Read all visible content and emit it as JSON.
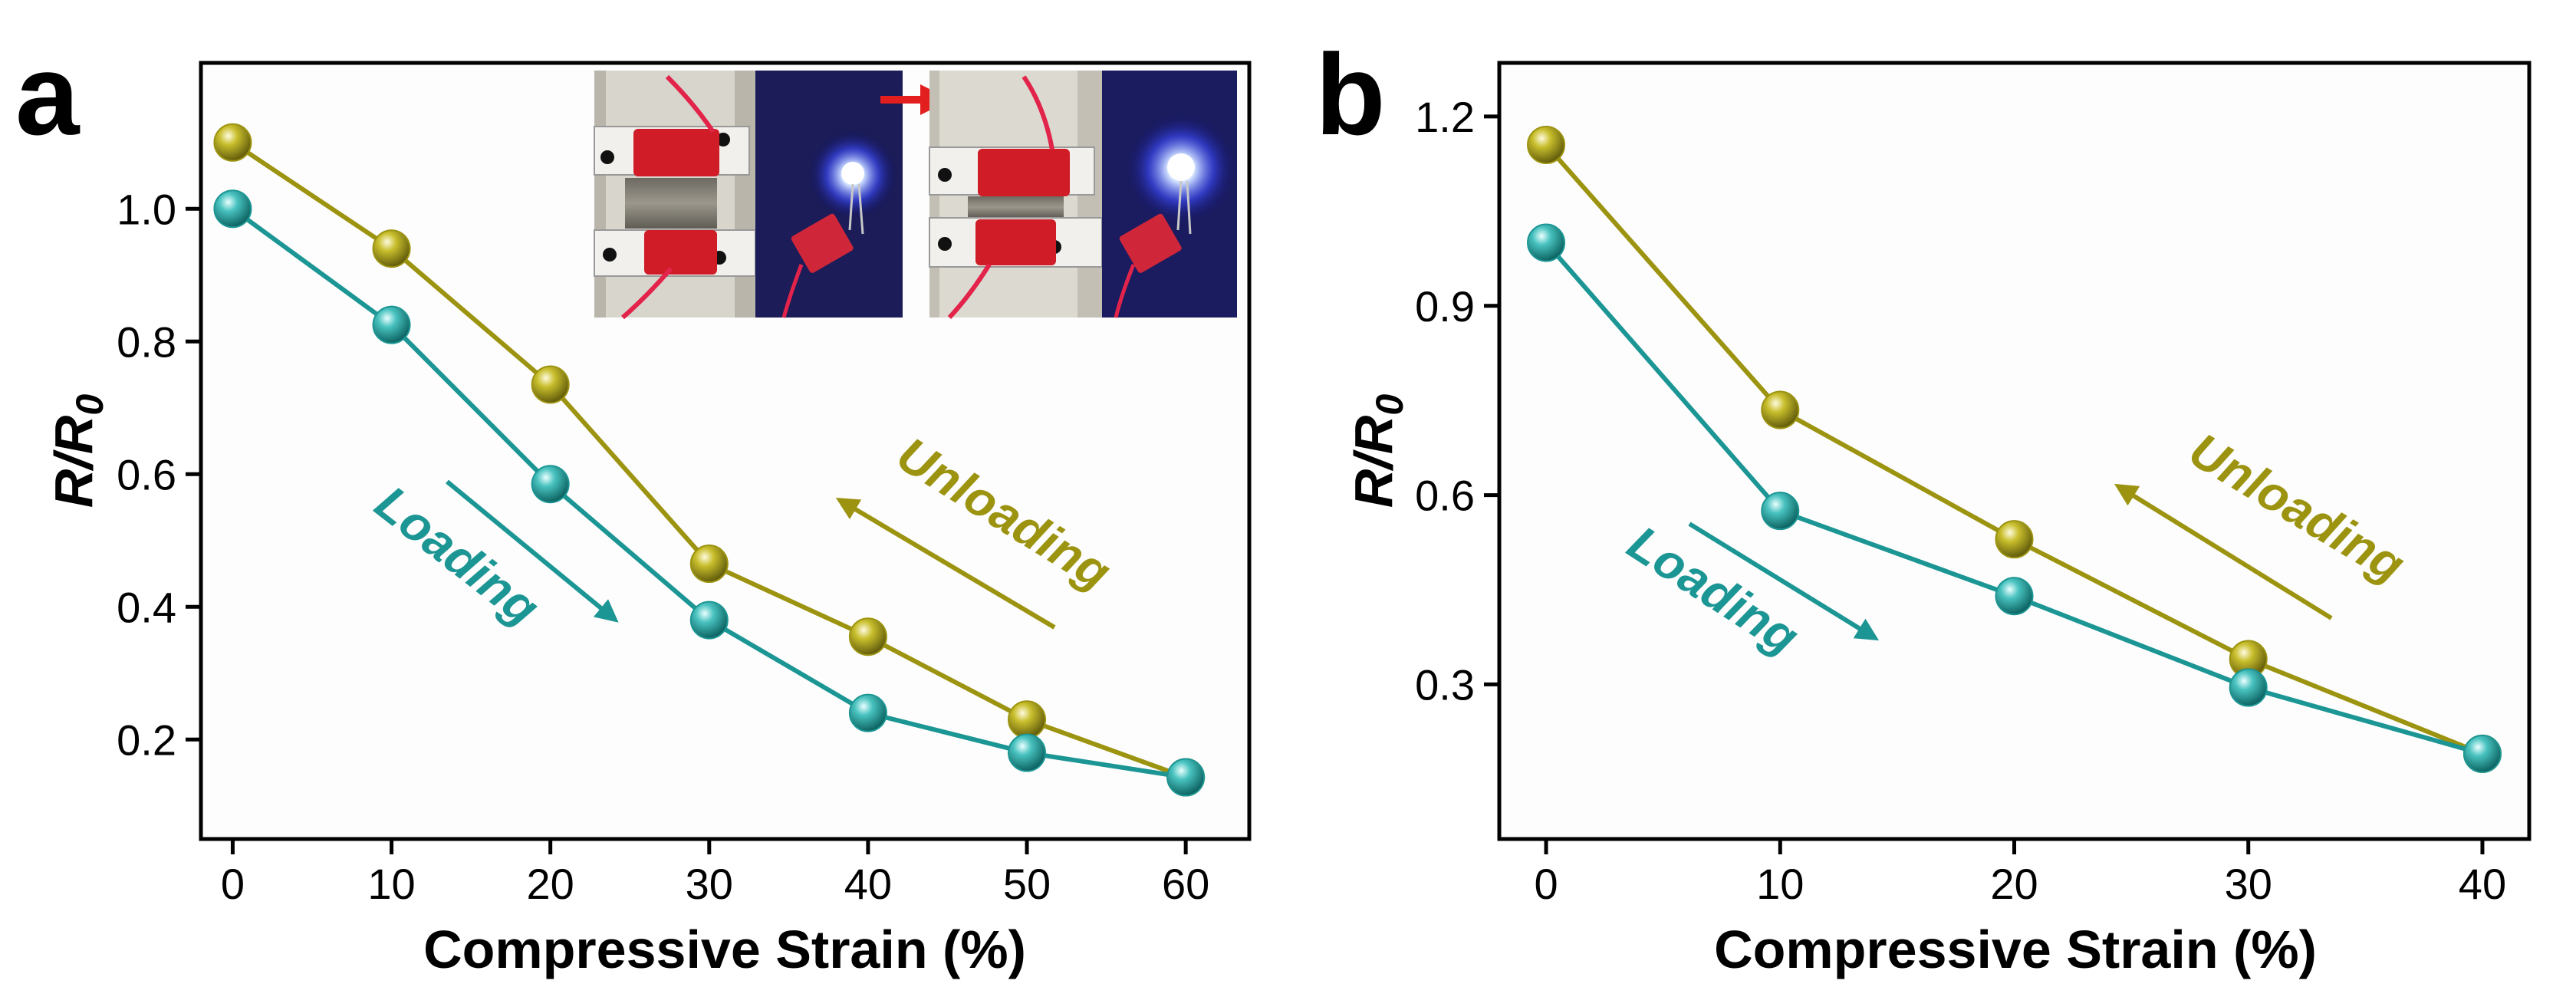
{
  "colors": {
    "loading": "#1c9694",
    "unloading": "#9c9410",
    "arrow_red": "#e31e1e",
    "plot_bg": "#fdfdfd"
  },
  "chart_data": [
    {
      "panel": "a",
      "type": "line",
      "xlabel": "Compressive Strain (%)",
      "ylabel": "R/R0",
      "ylabel_main": "R/R",
      "ylabel_sub": "0",
      "xlim": [
        -2,
        64
      ],
      "ylim": [
        0.05,
        1.22
      ],
      "xticks": [
        0,
        10,
        20,
        30,
        40,
        50,
        60
      ],
      "yticks": [
        0.2,
        0.4,
        0.6,
        0.8,
        1.0
      ],
      "ytick_labels": [
        "0.2",
        "0.4",
        "0.6",
        "0.8",
        "1.0"
      ],
      "series": [
        {
          "name": "Unloading",
          "color": "#9c9410",
          "x": [
            0,
            10,
            20,
            30,
            40,
            50,
            60
          ],
          "y": [
            1.1,
            0.94,
            0.735,
            0.465,
            0.355,
            0.23,
            0.143
          ]
        },
        {
          "name": "Loading",
          "color": "#1c9694",
          "x": [
            0,
            10,
            20,
            30,
            40,
            50,
            60
          ],
          "y": [
            1.0,
            0.825,
            0.585,
            0.38,
            0.24,
            0.18,
            0.143
          ]
        }
      ],
      "annotations": [
        {
          "text": "Loading",
          "color": "#1c9694",
          "arrow": "down-right"
        },
        {
          "text": "Unloading",
          "color": "#9c9410",
          "arrow": "up-left"
        }
      ],
      "inset": "photo: sponge sensor in clamps with lit blue LED, uncompressed → compressed"
    },
    {
      "panel": "b",
      "type": "line",
      "xlabel": "Compressive Strain (%)",
      "ylabel": "R/R0",
      "ylabel_main": "R/R",
      "ylabel_sub": "0",
      "xlim": [
        -2,
        42
      ],
      "ylim": [
        0.055,
        1.285
      ],
      "xticks": [
        0,
        10,
        20,
        30,
        40
      ],
      "yticks": [
        0.3,
        0.6,
        0.9,
        1.2
      ],
      "ytick_labels": [
        "0.3",
        "0.6",
        "0.9",
        "1.2"
      ],
      "series": [
        {
          "name": "Unloading",
          "color": "#9c9410",
          "x": [
            0,
            10,
            20,
            30,
            40
          ],
          "y": [
            1.155,
            0.735,
            0.53,
            0.34,
            0.19
          ]
        },
        {
          "name": "Loading",
          "color": "#1c9694",
          "x": [
            0,
            10,
            20,
            30,
            40
          ],
          "y": [
            1.0,
            0.575,
            0.44,
            0.295,
            0.19
          ]
        }
      ],
      "annotations": [
        {
          "text": "Loading",
          "color": "#1c9694",
          "arrow": "down-right"
        },
        {
          "text": "Unloading",
          "color": "#9c9410",
          "arrow": "up-left"
        }
      ]
    }
  ]
}
